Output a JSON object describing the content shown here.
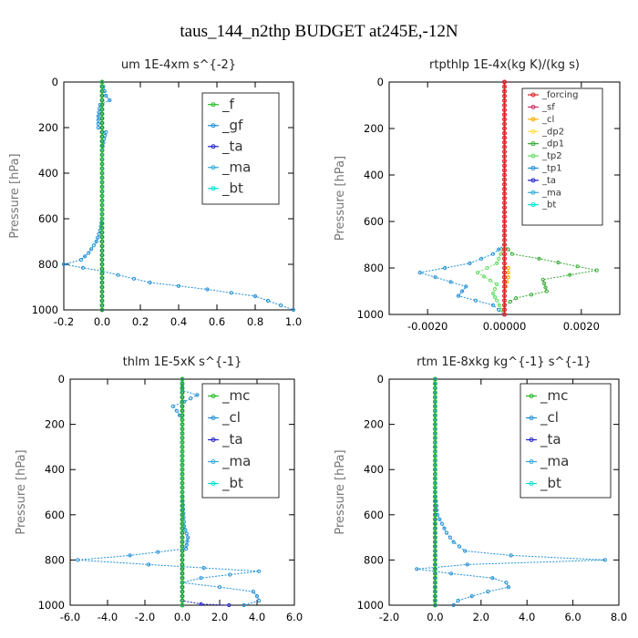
{
  "figure_title": "taus_144_n2thp  BUDGET at245E,-12N",
  "chart_data": [
    {
      "type": "line",
      "title": "um  1E-4xm s^{-2}",
      "xlabel": "",
      "ylabel": "Pressure [hPa]",
      "xlim": [
        -0.2,
        1.0
      ],
      "ylim": [
        0,
        1000
      ],
      "y_inverted": true,
      "xticks": [
        "-0.2",
        "0.0",
        "0.2",
        "0.4",
        "0.6",
        "0.8",
        "1.0"
      ],
      "yticks": [
        "0",
        "200",
        "400",
        "600",
        "800",
        "1000"
      ],
      "legend_position": "top-right",
      "series": [
        {
          "name": "_f",
          "color": "#22bb22",
          "points": [
            [
              0,
              0
            ],
            [
              0,
              100
            ],
            [
              0,
              200
            ],
            [
              0,
              300
            ],
            [
              0,
              400
            ],
            [
              0,
              500
            ],
            [
              0,
              600
            ],
            [
              0,
              700
            ],
            [
              0,
              800
            ],
            [
              0,
              900
            ],
            [
              0,
              1000
            ]
          ]
        },
        {
          "name": "_gf",
          "color": "#1f8fd6",
          "points": [
            [
              0,
              0
            ],
            [
              0.02,
              60
            ],
            [
              0.04,
              80
            ],
            [
              -0.01,
              100
            ],
            [
              -0.02,
              150
            ],
            [
              -0.02,
              200
            ],
            [
              0.02,
              220
            ],
            [
              0.01,
              250
            ],
            [
              0,
              300
            ],
            [
              0,
              400
            ],
            [
              0,
              500
            ],
            [
              0,
              600
            ],
            [
              -0.01,
              650
            ],
            [
              -0.03,
              700
            ],
            [
              -0.07,
              750
            ],
            [
              -0.11,
              780
            ],
            [
              -0.2,
              800
            ],
            [
              0,
              830
            ],
            [
              0.25,
              880
            ],
            [
              0.55,
              910
            ],
            [
              0.8,
              940
            ],
            [
              1.0,
              1000
            ]
          ]
        },
        {
          "name": "_ta",
          "color": "#2222cc",
          "points": [
            [
              0,
              0
            ],
            [
              0,
              1000
            ]
          ]
        },
        {
          "name": "_ma",
          "color": "#33aadd",
          "points": [
            [
              0,
              0
            ],
            [
              0,
              1000
            ]
          ]
        },
        {
          "name": "_bt",
          "color": "#00e0d0",
          "points": [
            [
              0,
              0
            ],
            [
              0,
              1000
            ]
          ]
        }
      ]
    },
    {
      "type": "line",
      "title": "rtpthlp  1E-4x(kg K)/(kg s)",
      "xlabel": "",
      "ylabel": "Pressure [hPa]",
      "xlim": [
        -0.003,
        0.003
      ],
      "ylim": [
        0,
        1000
      ],
      "y_inverted": true,
      "xticks": [
        "-0.0020",
        "0.00000",
        "0.0020"
      ],
      "yticks": [
        "0",
        "200",
        "400",
        "600",
        "800",
        "1000"
      ],
      "legend_position": "top-right",
      "series": [
        {
          "name": "_forcing",
          "color": "#dd2222",
          "points": [
            [
              0,
              0
            ],
            [
              0,
              1000
            ]
          ]
        },
        {
          "name": "_sf",
          "color": "#cc3366",
          "points": [
            [
              0,
              0
            ],
            [
              0,
              1000
            ]
          ]
        },
        {
          "name": "_cl",
          "color": "#ffaa00",
          "points": [
            [
              0,
              0
            ],
            [
              0,
              780
            ],
            [
              0.0001,
              800
            ],
            [
              0.0001,
              840
            ],
            [
              0,
              900
            ],
            [
              0,
              1000
            ]
          ]
        },
        {
          "name": "_dp2",
          "color": "#ffdd44",
          "points": [
            [
              0,
              0
            ],
            [
              0,
              1000
            ]
          ]
        },
        {
          "name": "_dp1",
          "color": "#33aa33",
          "points": [
            [
              0,
              0
            ],
            [
              0,
              700
            ],
            [
              0.0002,
              740
            ],
            [
              0.0009,
              760
            ],
            [
              0.0024,
              810
            ],
            [
              0.001,
              850
            ],
            [
              0.0011,
              900
            ],
            [
              0.0003,
              930
            ],
            [
              0,
              960
            ],
            [
              0,
              1000
            ]
          ]
        },
        {
          "name": "_tp2",
          "color": "#66dd66",
          "points": [
            [
              0,
              0
            ],
            [
              0,
              700
            ],
            [
              -0.0002,
              780
            ],
            [
              -0.0007,
              820
            ],
            [
              -0.0002,
              870
            ],
            [
              -0.0003,
              910
            ],
            [
              -0.0002,
              940
            ],
            [
              0,
              1000
            ]
          ]
        },
        {
          "name": "_tp1",
          "color": "#1f8fd6",
          "points": [
            [
              0,
              0
            ],
            [
              0,
              700
            ],
            [
              -0.0003,
              740
            ],
            [
              -0.0009,
              780
            ],
            [
              -0.0022,
              820
            ],
            [
              -0.001,
              880
            ],
            [
              -0.0012,
              920
            ],
            [
              -0.0003,
              960
            ],
            [
              0,
              1000
            ]
          ]
        },
        {
          "name": "_ta",
          "color": "#2222cc",
          "points": [
            [
              0,
              0
            ],
            [
              0,
              1000
            ]
          ]
        },
        {
          "name": "_ma",
          "color": "#33aadd",
          "points": [
            [
              0,
              0
            ],
            [
              0,
              1000
            ]
          ]
        },
        {
          "name": "_bt",
          "color": "#00e0d0",
          "points": [
            [
              0,
              0
            ],
            [
              0,
              1000
            ]
          ]
        }
      ]
    },
    {
      "type": "line",
      "title": "thlm  1E-5xK s^{-1}",
      "xlabel": "",
      "ylabel": "Pressure [hPa]",
      "xlim": [
        -6,
        6
      ],
      "ylim": [
        0,
        1000
      ],
      "y_inverted": true,
      "xticks": [
        "-6.0",
        "-4.0",
        "-2.0",
        "0.0",
        "2.0",
        "4.0",
        "6.0"
      ],
      "yticks": [
        "0",
        "200",
        "400",
        "600",
        "800",
        "1000"
      ],
      "legend_position": "top-right",
      "series": [
        {
          "name": "_mc",
          "color": "#22bb22",
          "points": [
            [
              0,
              0
            ],
            [
              0,
              1000
            ]
          ]
        },
        {
          "name": "_cl",
          "color": "#1f8fd6",
          "points": [
            [
              0,
              0
            ],
            [
              0,
              50
            ],
            [
              0.8,
              70
            ],
            [
              0.1,
              100
            ],
            [
              -0.5,
              120
            ],
            [
              -0.3,
              140
            ],
            [
              0,
              180
            ],
            [
              0,
              300
            ],
            [
              0,
              400
            ],
            [
              0,
              500
            ],
            [
              0.1,
              650
            ],
            [
              0.3,
              700
            ],
            [
              0.2,
              750
            ],
            [
              -2.8,
              780
            ],
            [
              -5.6,
              800
            ],
            [
              -1.8,
              820
            ],
            [
              4.1,
              850
            ],
            [
              1.0,
              880
            ],
            [
              0,
              900
            ],
            [
              2.0,
              920
            ],
            [
              3.8,
              940
            ],
            [
              4.0,
              960
            ],
            [
              4.1,
              980
            ],
            [
              3.3,
              1000
            ]
          ]
        },
        {
          "name": "_ta",
          "color": "#2222cc",
          "points": [
            [
              0,
              0
            ],
            [
              0,
              980
            ],
            [
              1.0,
              995
            ],
            [
              2.5,
              1000
            ]
          ]
        },
        {
          "name": "_ma",
          "color": "#33aadd",
          "points": [
            [
              0,
              0
            ],
            [
              0,
              1000
            ]
          ]
        },
        {
          "name": "_bt",
          "color": "#00e0d0",
          "points": [
            [
              0,
              0
            ],
            [
              0,
              1000
            ]
          ]
        }
      ]
    },
    {
      "type": "line",
      "title": "rtm  1E-8xkg kg^{-1} s^{-1}",
      "xlabel": "",
      "ylabel": "Pressure [hPa]",
      "xlim": [
        -2,
        8
      ],
      "ylim": [
        0,
        1000
      ],
      "y_inverted": true,
      "xticks": [
        "-2.0",
        "0.0",
        "2.0",
        "4.0",
        "6.0",
        "8.0"
      ],
      "yticks": [
        "0",
        "200",
        "400",
        "600",
        "800",
        "1000"
      ],
      "legend_position": "top-right",
      "series": [
        {
          "name": "_mc",
          "color": "#22bb22",
          "points": [
            [
              0,
              0
            ],
            [
              0,
              1000
            ]
          ]
        },
        {
          "name": "_cl",
          "color": "#1f8fd6",
          "points": [
            [
              0,
              0
            ],
            [
              0,
              500
            ],
            [
              0.1,
              600
            ],
            [
              0.3,
              640
            ],
            [
              0.5,
              680
            ],
            [
              0.8,
              720
            ],
            [
              1.3,
              760
            ],
            [
              3.3,
              780
            ],
            [
              7.4,
              800
            ],
            [
              1.4,
              820
            ],
            [
              -0.8,
              840
            ],
            [
              0.7,
              860
            ],
            [
              2.5,
              880
            ],
            [
              3.1,
              900
            ],
            [
              3.2,
              920
            ],
            [
              2.3,
              940
            ],
            [
              1.6,
              960
            ],
            [
              1.0,
              980
            ],
            [
              0.8,
              1000
            ]
          ]
        },
        {
          "name": "_ta",
          "color": "#2222cc",
          "points": [
            [
              0,
              0
            ],
            [
              0,
              1000
            ]
          ]
        },
        {
          "name": "_ma",
          "color": "#33aadd",
          "points": [
            [
              0,
              0
            ],
            [
              0,
              1000
            ]
          ]
        },
        {
          "name": "_bt",
          "color": "#00e0d0",
          "points": [
            [
              0,
              0
            ],
            [
              0,
              1000
            ]
          ]
        }
      ]
    }
  ]
}
